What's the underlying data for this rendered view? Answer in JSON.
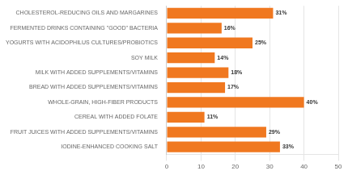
{
  "chart_data": {
    "type": "bar",
    "orientation": "horizontal",
    "categories": [
      "CHOLESTEROL-REDUCING OILS AND MARGARINES",
      "FERMENTED DRINKS CONTAINING \"GOOD\" BACTERIA",
      "YOGURTS WITH ACIDOPHILUS CULTURES/PROBIOTICS",
      "SOY MILK",
      "MILK WITH ADDED SUPPLEMENTS/VITAMINS",
      "BREAD WITH ADDED SUPPLEMENTS/VITAMINS",
      "WHOLE-GRAIN, HIGH-FIBER PRODUCTS",
      "CEREAL WITH ADDED FOLATE",
      "FRUIT JUICES WITH ADDED SUPPLEMENTS/VITAMINS",
      "IODINE-ENHANCED COOKING SALT"
    ],
    "values": [
      31,
      16,
      25,
      14,
      18,
      17,
      40,
      11,
      29,
      33
    ],
    "value_labels": [
      "31%",
      "16%",
      "25%",
      "14%",
      "18%",
      "17%",
      "40%",
      "11%",
      "29%",
      "33%"
    ],
    "data_labels": true,
    "color": "#F07820",
    "xlim": [
      0,
      50
    ],
    "xticks": [
      0,
      10,
      20,
      30,
      40,
      50
    ],
    "grid": true
  }
}
